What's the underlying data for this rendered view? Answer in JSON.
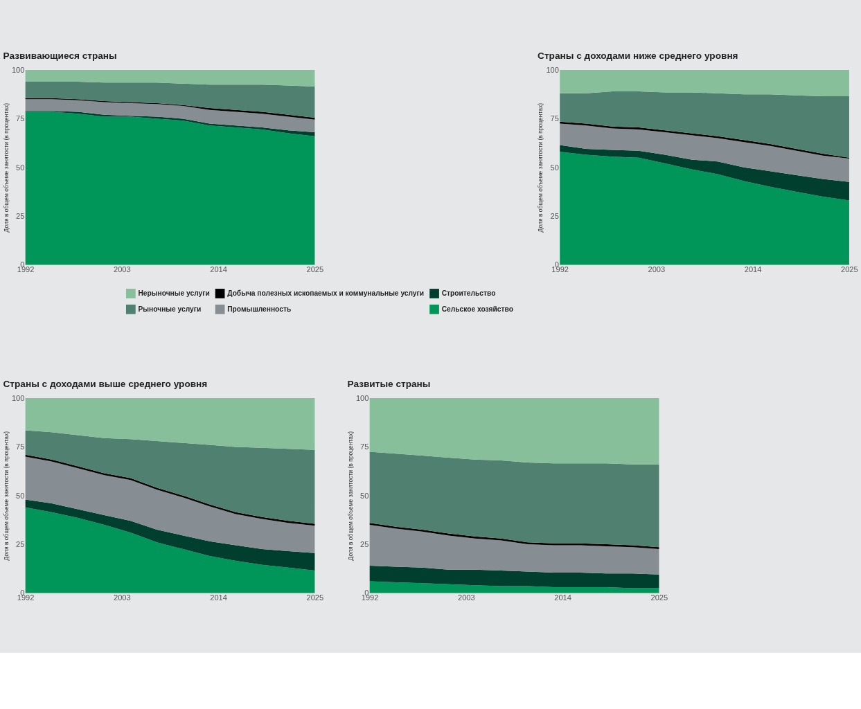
{
  "chart_data": [
    {
      "type": "area",
      "stacked": true,
      "title": "Развивающиеся страны",
      "ylabel": "Доля в общем объеме занятости (в процентах)",
      "legend": "bottom",
      "x": [
        1992,
        1995,
        1998,
        2001,
        2004,
        2007,
        2010,
        2013,
        2016,
        2019,
        2022,
        2025
      ],
      "xlim": [
        1992,
        2025
      ],
      "xticks": [
        1992,
        2003,
        2014,
        2025
      ],
      "ylim": [
        0,
        100
      ],
      "yticks": [
        0,
        25,
        50,
        75,
        100
      ],
      "grid": false,
      "series": [
        {
          "name": "Сельское хозяйство",
          "color": "#00965a",
          "values": [
            78.5,
            78.5,
            77.5,
            76,
            76,
            75,
            74,
            71.5,
            70.5,
            69.5,
            67.5,
            66
          ]
        },
        {
          "name": "Строительство",
          "color": "#003f2e",
          "values": [
            0.5,
            0.5,
            1,
            1,
            0.5,
            1,
            1,
            1,
            1,
            1,
            1.5,
            2
          ]
        },
        {
          "name": "Промышленность",
          "color": "#868e94",
          "values": [
            6,
            6,
            6,
            6.5,
            6.5,
            6.5,
            6.5,
            7,
            7,
            7,
            7,
            6.5
          ]
        },
        {
          "name": "Добыча полезных ископаемых и коммунальные услуги",
          "color": "#000000",
          "values": [
            0.5,
            0.5,
            0.5,
            0.5,
            0.5,
            0.5,
            0.5,
            1,
            1,
            1,
            1,
            1
          ]
        },
        {
          "name": "Рыночные услуги",
          "color": "#4f8070",
          "values": [
            8.5,
            8.5,
            9,
            9.5,
            10,
            10.5,
            11,
            12,
            13,
            14,
            15,
            16
          ]
        },
        {
          "name": "Нерыночные услуги",
          "color": "#86bf9a",
          "values": [
            6,
            6,
            6,
            6.5,
            6.5,
            6.5,
            7,
            7.5,
            7.5,
            7.5,
            8,
            8.5
          ]
        }
      ]
    },
    {
      "type": "area",
      "stacked": true,
      "title": "Страны с доходами ниже среднего уровня",
      "ylabel": "Доля в общем объеме занятости (в процентах)",
      "x": [
        1992,
        1995,
        1998,
        2001,
        2004,
        2007,
        2010,
        2013,
        2016,
        2019,
        2022,
        2025
      ],
      "xlim": [
        1992,
        2025
      ],
      "xticks": [
        1992,
        2003,
        2014,
        2025
      ],
      "ylim": [
        0,
        100
      ],
      "yticks": [
        0,
        25,
        50,
        75,
        100
      ],
      "grid": false,
      "series": [
        {
          "color": "#00965a",
          "values": [
            58,
            56.5,
            55.5,
            55,
            52,
            49,
            46.5,
            43,
            40,
            37.5,
            35,
            33
          ]
        },
        {
          "color": "#003f2e",
          "values": [
            3.5,
            3,
            3.5,
            3.5,
            4.5,
            5,
            6.5,
            7,
            8,
            8.5,
            9,
            9.5
          ]
        },
        {
          "color": "#868e94",
          "values": [
            11,
            12,
            11,
            11,
            11.5,
            12.5,
            12,
            13,
            13,
            12.5,
            12,
            12
          ]
        },
        {
          "color": "#000000",
          "values": [
            1,
            1,
            1,
            1,
            1,
            1,
            1,
            1,
            1,
            1,
            1,
            0.5
          ]
        },
        {
          "color": "#4f8070",
          "values": [
            14.5,
            15.5,
            18,
            18.5,
            19.5,
            21,
            22,
            23.5,
            25.5,
            27.5,
            29.5,
            31.5
          ]
        },
        {
          "color": "#86bf9a",
          "values": [
            12,
            12,
            11,
            11,
            11.5,
            11.5,
            12,
            12.5,
            12.5,
            13,
            13.5,
            13.5
          ]
        }
      ]
    },
    {
      "type": "area",
      "stacked": true,
      "title": "Страны с доходами выше среднего уровня",
      "ylabel": "Доля в общем объеме занятости (в процентах)",
      "x": [
        1992,
        1995,
        1998,
        2001,
        2004,
        2007,
        2010,
        2013,
        2016,
        2019,
        2022,
        2025
      ],
      "xlim": [
        1992,
        2025
      ],
      "xticks": [
        1992,
        2003,
        2014,
        2025
      ],
      "ylim": [
        0,
        100
      ],
      "yticks": [
        0,
        25,
        50,
        75,
        100
      ],
      "grid": false,
      "series": [
        {
          "color": "#00965a",
          "values": [
            44,
            41.5,
            38.5,
            35,
            31,
            26,
            22.5,
            19,
            16.5,
            14.5,
            13,
            11.5
          ]
        },
        {
          "color": "#003f2e",
          "values": [
            4,
            4.5,
            4.5,
            5,
            6,
            6.5,
            7,
            7.5,
            8,
            8,
            8.5,
            9
          ]
        },
        {
          "color": "#868e94",
          "values": [
            22,
            21.5,
            21,
            20.5,
            21,
            20.5,
            19.5,
            18,
            16,
            15.5,
            14.5,
            14
          ]
        },
        {
          "color": "#000000",
          "values": [
            1,
            1,
            1,
            1,
            1,
            1,
            1,
            1,
            1,
            1,
            1,
            1
          ]
        },
        {
          "color": "#4f8070",
          "values": [
            12.5,
            14,
            16,
            18,
            20,
            24,
            27,
            30.5,
            33.5,
            35.5,
            37,
            38
          ]
        },
        {
          "color": "#86bf9a",
          "values": [
            16.5,
            17.5,
            19,
            20.5,
            21,
            22,
            23,
            24,
            25,
            25.5,
            26,
            26.5
          ]
        }
      ]
    },
    {
      "type": "area",
      "stacked": true,
      "title": "Развитые страны",
      "ylabel": "Доля в общем объеме занятости (в процентах)",
      "x": [
        1992,
        1995,
        1998,
        2001,
        2004,
        2007,
        2010,
        2013,
        2016,
        2019,
        2022,
        2025
      ],
      "xlim": [
        1992,
        2025
      ],
      "xticks": [
        1992,
        2003,
        2014,
        2025
      ],
      "ylim": [
        0,
        100
      ],
      "yticks": [
        0,
        25,
        50,
        75,
        100
      ],
      "grid": false,
      "series": [
        {
          "color": "#00965a",
          "values": [
            6,
            5.5,
            5,
            4.5,
            4,
            3.5,
            3.5,
            3,
            3,
            3,
            2.5,
            2.5
          ]
        },
        {
          "color": "#003f2e",
          "values": [
            8,
            8,
            8,
            7.5,
            8,
            8,
            7.5,
            7.5,
            7.5,
            7,
            7.5,
            7
          ]
        },
        {
          "color": "#868e94",
          "values": [
            21,
            19.5,
            18.5,
            17.5,
            16,
            15.5,
            14,
            14,
            14,
            14,
            13.5,
            13
          ]
        },
        {
          "color": "#000000",
          "values": [
            1,
            1,
            1,
            1,
            1,
            1,
            1,
            1,
            1,
            1,
            1,
            1
          ]
        },
        {
          "color": "#4f8070",
          "values": [
            36.5,
            37.5,
            38,
            39,
            39.5,
            40,
            41,
            41,
            41,
            41.5,
            41.5,
            42.5
          ]
        },
        {
          "color": "#86bf9a",
          "values": [
            27.5,
            28.5,
            29.5,
            30.5,
            31.5,
            32,
            33,
            33.5,
            33.5,
            33.5,
            34,
            34
          ]
        }
      ]
    }
  ]
}
